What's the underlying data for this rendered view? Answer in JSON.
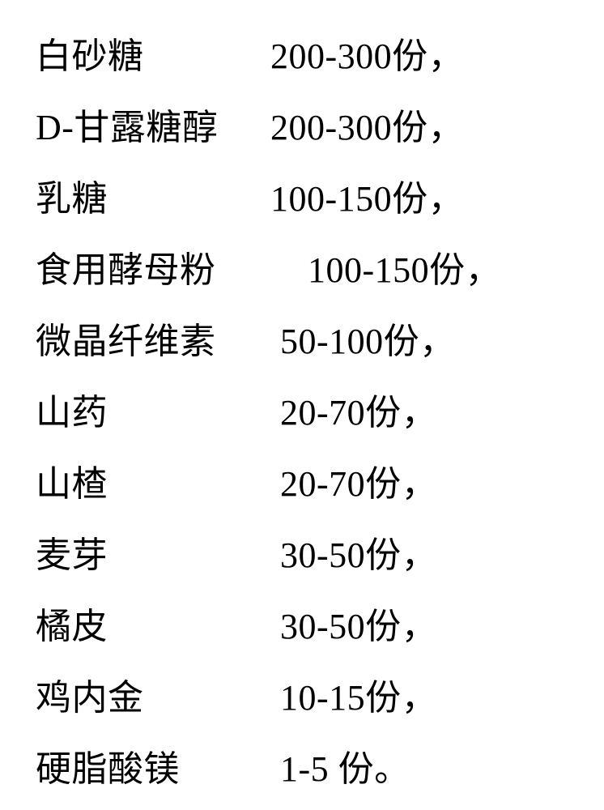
{
  "ingredients": [
    {
      "name": "白砂糖",
      "qty": "200-300份，",
      "indent": ""
    },
    {
      "name": "D-甘露糖醇",
      "qty": "200-300份，",
      "indent": ""
    },
    {
      "name": "乳糖",
      "qty": "100-150份，",
      "indent": ""
    },
    {
      "name": "食用酵母粉",
      "qty": "100-150份，",
      "indent": "indent-1"
    },
    {
      "name": "微晶纤维素",
      "qty": "50-100份，",
      "indent": "indent-2"
    },
    {
      "name": "山药",
      "qty": "20-70份，",
      "indent": "indent-2"
    },
    {
      "name": "山楂",
      "qty": "20-70份，",
      "indent": "indent-2"
    },
    {
      "name": "麦芽",
      "qty": "30-50份，",
      "indent": "indent-2"
    },
    {
      "name": "橘皮",
      "qty": "30-50份，",
      "indent": "indent-2"
    },
    {
      "name": "鸡内金",
      "qty": "10-15份，",
      "indent": "indent-2"
    },
    {
      "name": "硬脂酸镁",
      "qty": "1-5 份。",
      "indent": "indent-2"
    }
  ]
}
